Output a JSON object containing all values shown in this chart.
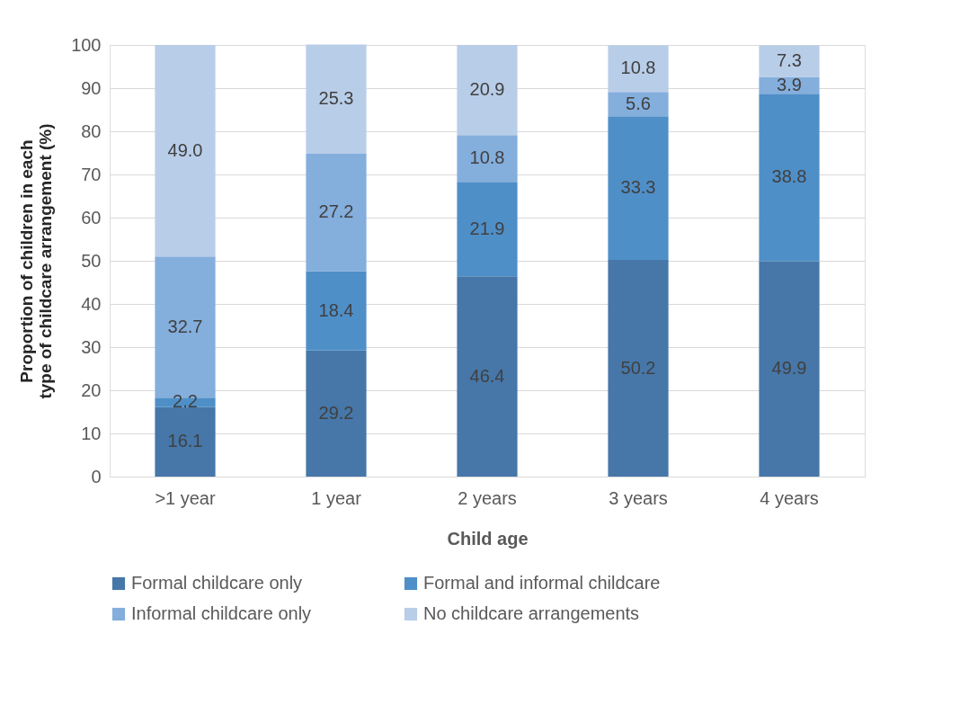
{
  "chart_data": {
    "type": "bar",
    "stacked": true,
    "xlabel": "Child age",
    "ylabel": "Proportion of children in each type of childcare arrangement (%)",
    "categories": [
      ">1 year",
      "1 year",
      "2 years",
      "3 years",
      "4 years"
    ],
    "series": [
      {
        "name": "Formal childcare only",
        "color": "#4677a8",
        "values": [
          16.1,
          29.2,
          46.4,
          50.2,
          49.9
        ],
        "value_labels": [
          "16.1",
          "29.2",
          "46.4",
          "50.2",
          "49.9"
        ]
      },
      {
        "name": "Formal and informal childcare",
        "color": "#4f8fc8",
        "values": [
          2.2,
          18.4,
          21.9,
          33.3,
          38.8
        ],
        "value_labels": [
          "2.2",
          "18.4",
          "21.9",
          "33.3",
          "38.8"
        ]
      },
      {
        "name": "Informal childcare only",
        "color": "#84aedc",
        "values": [
          32.7,
          27.2,
          10.8,
          5.6,
          3.9
        ],
        "value_labels": [
          "32.7",
          "27.2",
          "10.8",
          "5.6",
          "3.9"
        ]
      },
      {
        "name": "No childcare arrangements",
        "color": "#b8cde8",
        "values": [
          49.0,
          25.3,
          20.9,
          10.8,
          7.3
        ],
        "value_labels": [
          "49.0",
          "25.3",
          "20.9",
          "10.8",
          "7.3"
        ]
      }
    ],
    "ylim": [
      0,
      100
    ],
    "yticks": [
      0,
      10,
      20,
      30,
      40,
      50,
      60,
      70,
      80,
      90,
      100
    ],
    "grid": "y",
    "legend": "bottom"
  }
}
